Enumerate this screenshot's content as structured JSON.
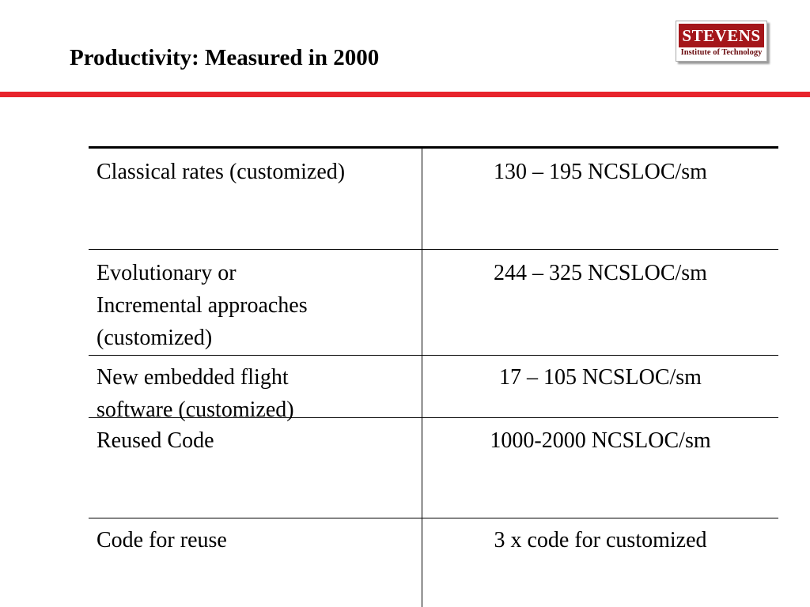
{
  "slide": {
    "title": "Productivity:  Measured in 2000"
  },
  "logo": {
    "name": "STEVENS",
    "subtitle": "Institute of Technology"
  },
  "table": {
    "rows": [
      {
        "label_lines": [
          "Classical rates (customized)"
        ],
        "value": "130 – 195 NCSLOC/sm"
      },
      {
        "label_lines": [
          "Evolutionary or",
          "Incremental approaches",
          "(customized)"
        ],
        "value": "244 – 325 NCSLOC/sm"
      },
      {
        "label_lines": [
          "New embedded flight",
          "software (customized)"
        ],
        "value": "17 – 105 NCSLOC/sm"
      },
      {
        "label_lines": [
          "Reused Code"
        ],
        "value": "1000-2000 NCSLOC/sm"
      },
      {
        "label_lines": [
          "Code for reuse"
        ],
        "value": "3 x code for customized"
      }
    ]
  }
}
